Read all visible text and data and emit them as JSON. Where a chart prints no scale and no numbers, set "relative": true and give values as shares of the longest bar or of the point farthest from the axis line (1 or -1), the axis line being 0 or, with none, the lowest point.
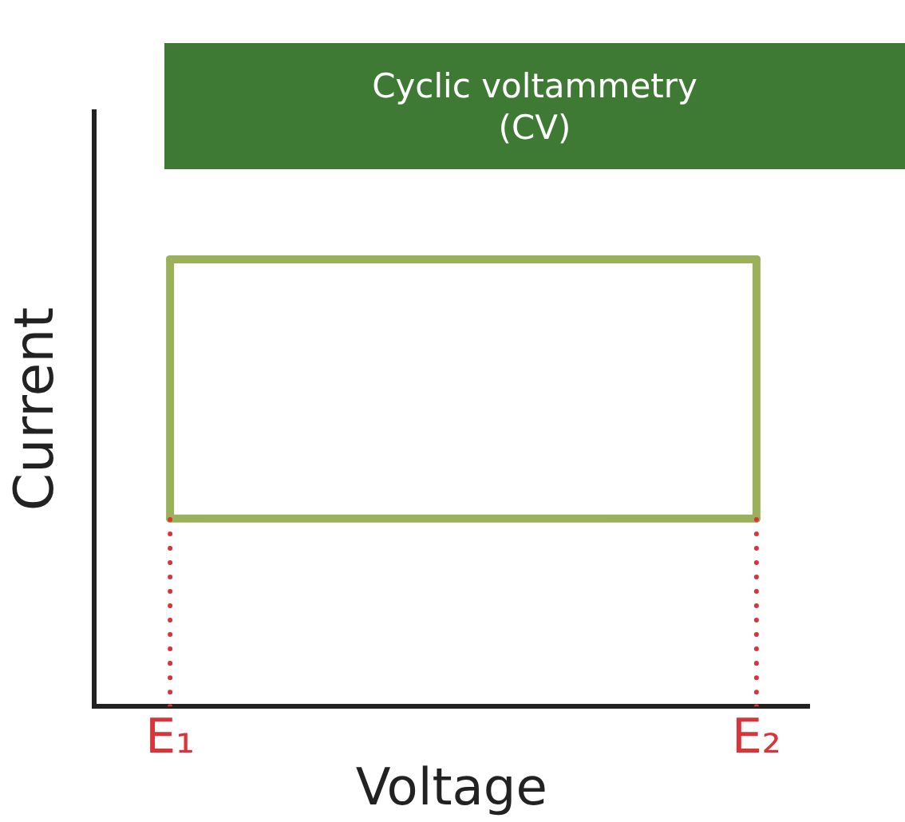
{
  "chart_data": {
    "type": "line",
    "title": "Cyclic voltammetry (CV)",
    "xlabel": "Voltage",
    "ylabel": "Current",
    "relative": true,
    "categories": [
      "E₁",
      "E₂"
    ],
    "series": [
      {
        "color": "#9bb05a",
        "values": [
          1,
          1
        ]
      },
      {
        "color": "#9bb05a",
        "values": [
          0.42,
          0.42
        ]
      },
      {
        "color": "#9bb05a",
        "x": [
          "E₁",
          "E₁"
        ],
        "values": [
          0.42,
          1
        ]
      },
      {
        "color": "#9bb05a",
        "x": [
          "E₂",
          "E₂"
        ],
        "values": [
          0.42,
          1
        ]
      },
      {
        "color": "#d9343a",
        "line_style": "dotted",
        "x": [
          "E₁",
          "E₁"
        ],
        "values": [
          0,
          0.42
        ]
      },
      {
        "color": "#d9343a",
        "line_style": "dotted",
        "x": [
          "E₂",
          "E₂"
        ],
        "values": [
          0,
          0.42
        ]
      }
    ],
    "grid": false,
    "legend": false,
    "marker": "none",
    "line_style": "solid"
  }
}
